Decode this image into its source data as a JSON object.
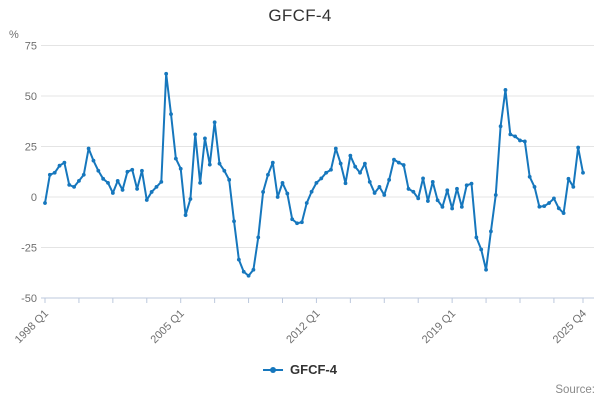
{
  "title": "GFCF-4",
  "source_label": "Source:",
  "y_axis_unit": "%",
  "legend": {
    "items": [
      {
        "label": "GFCF-4"
      }
    ]
  },
  "colors": {
    "line": "#1677bd",
    "grid": "#e4e4e4",
    "axis": "#bcc8dd",
    "title_text": "#333333",
    "tick_text": "#6f6f6f",
    "source_text": "#8a8a8a"
  },
  "chart_data": {
    "type": "line",
    "title": "GFCF-4",
    "series_name": "GFCF-4",
    "ylabel": "%",
    "ylim": [
      -50,
      75
    ],
    "yticks": [
      75,
      50,
      25,
      0,
      -25,
      -50
    ],
    "grid": "horizontal",
    "legend_position": "bottom",
    "frequency": "quarterly",
    "x_range": [
      "1998 Q1",
      "2025 Q4"
    ],
    "x_tick_labels": [
      "1998 Q1",
      "2005 Q1",
      "2012 Q1",
      "2019 Q1",
      "2025 Q4"
    ],
    "x_tick_positions": [
      0,
      28,
      56,
      84,
      111
    ],
    "minor_tick_step_quarters": 7,
    "values": [
      -3,
      11,
      12,
      15.5,
      17,
      6,
      5,
      8,
      11,
      24,
      18,
      13,
      9,
      7,
      2,
      8,
      3.5,
      12.5,
      13.5,
      4,
      13,
      -1.5,
      2.5,
      5,
      7.5,
      61,
      41,
      19,
      14,
      -9,
      -1,
      31,
      7,
      29,
      16,
      37,
      16.5,
      13,
      8.5,
      -12,
      -31,
      -37,
      -39,
      -36,
      -20,
      2.5,
      11,
      17,
      0,
      7,
      1.7,
      -11,
      -13,
      -12.5,
      -3,
      2.6,
      7,
      9.2,
      12,
      13.5,
      24,
      16.6,
      6.8,
      20.5,
      15,
      12,
      16.5,
      7.5,
      2,
      5,
      1,
      8.5,
      18.5,
      17,
      15.8,
      4,
      2.6,
      -0.7,
      9.2,
      -2,
      7.5,
      -1.6,
      -4.9,
      3.3,
      -5.7,
      4.1,
      -4.9,
      5.8,
      6.6,
      -20,
      -26,
      -36,
      -17,
      1,
      35,
      53,
      31,
      30,
      28,
      27.5,
      10,
      5,
      -4.8,
      -4.5,
      -3,
      -0.7,
      -5.6,
      -8,
      9,
      5,
      24.5,
      12
    ]
  }
}
